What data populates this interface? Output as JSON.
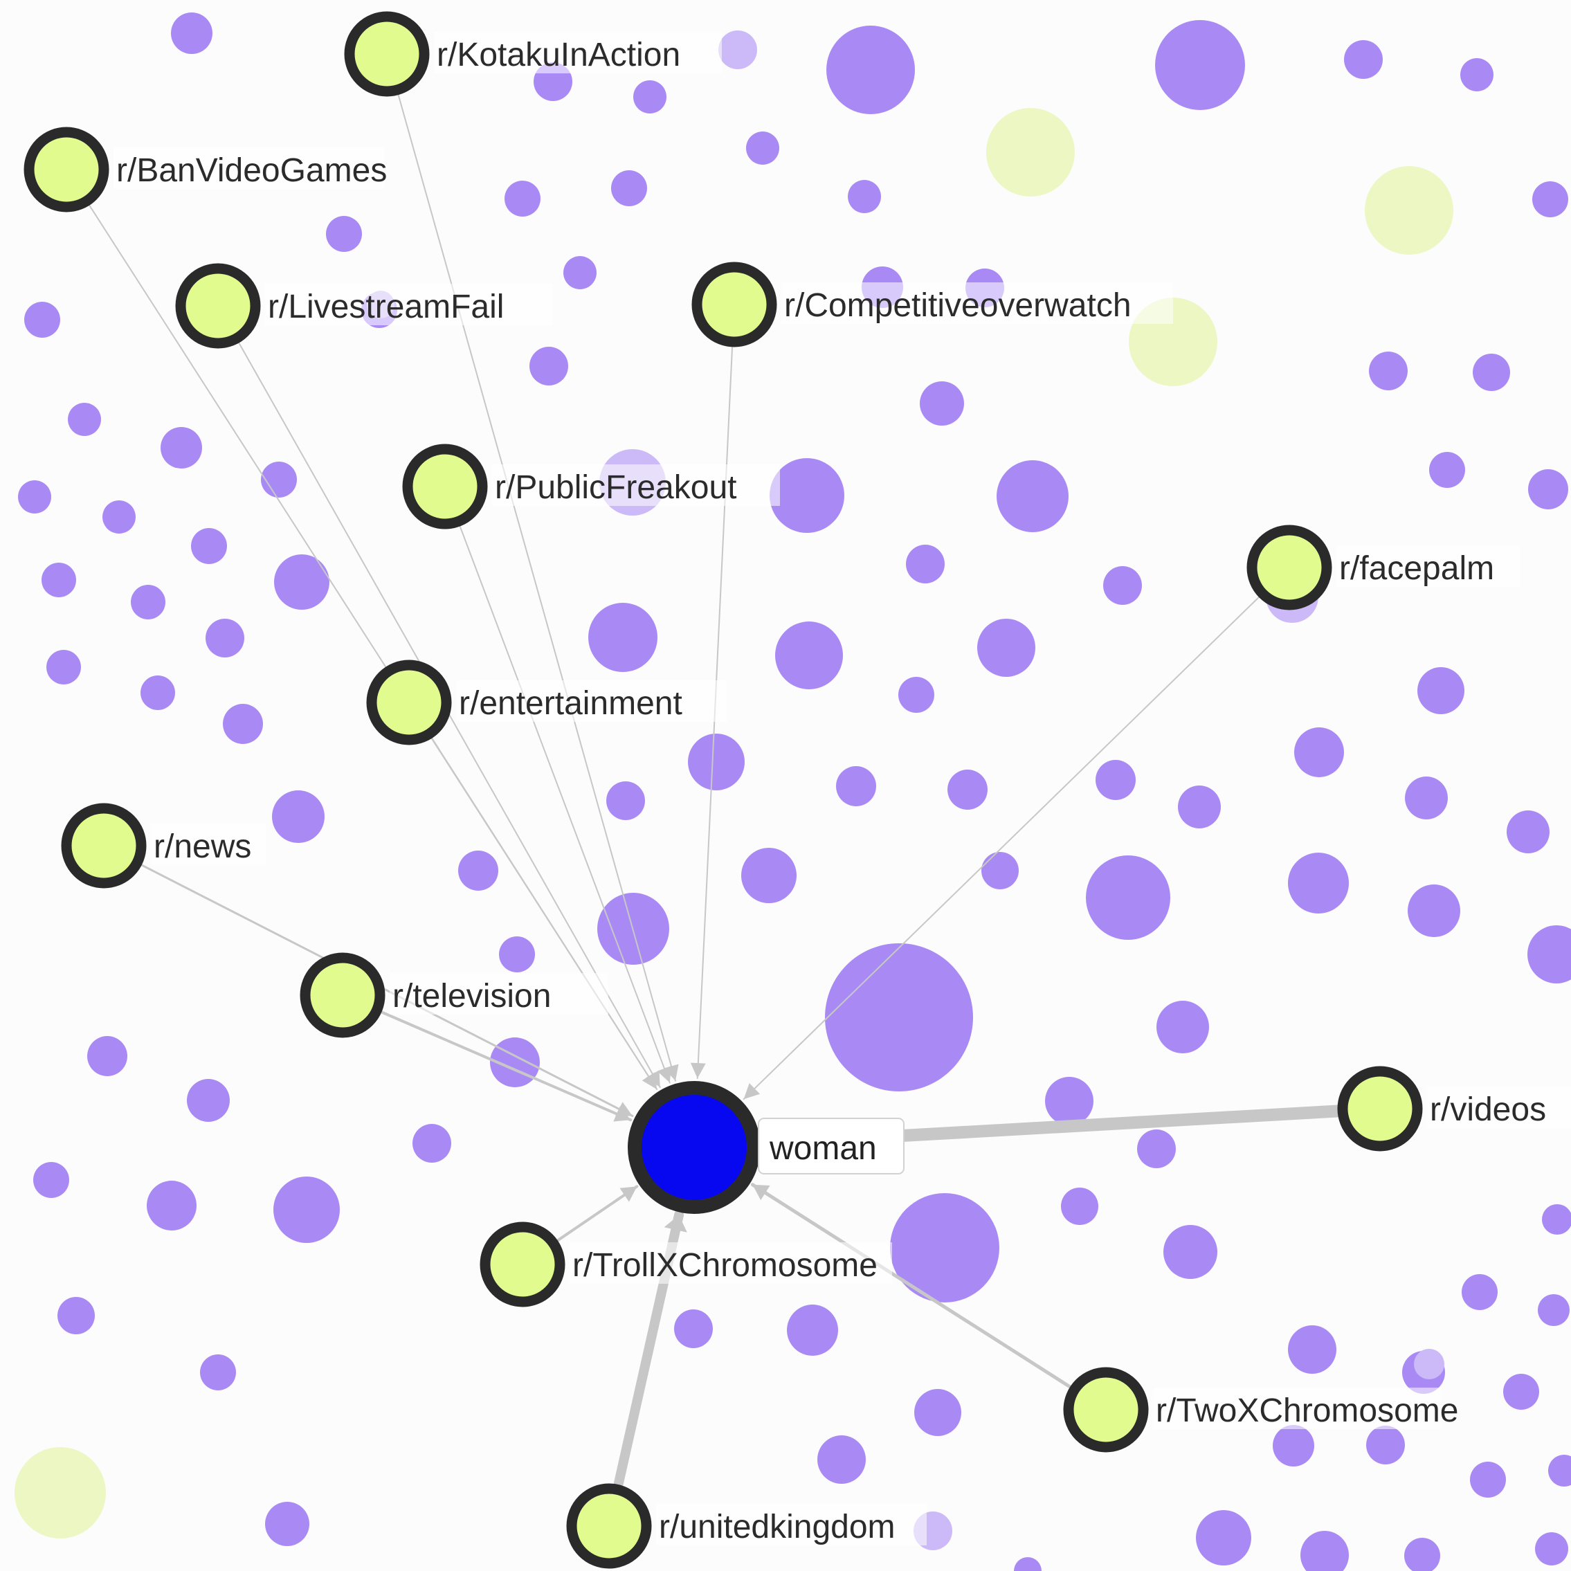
{
  "colors": {
    "background": "#fcfcfc",
    "bg_node": "#a98af5",
    "bg_node_faded": "#ccb9f7",
    "bg_node_green_faded": "#ecf7c4",
    "subreddit_fill": "#e2fb8e",
    "subreddit_stroke": "#2a2a2a",
    "center_fill": "#0808f0",
    "edge": "#c7c7c7",
    "label_bg": "#ffffff"
  },
  "center": {
    "label": "woman"
  },
  "subreddits": [
    {
      "id": "kotakuinaction",
      "label": "r/KotakuInAction"
    },
    {
      "id": "banvideogames",
      "label": "r/BanVideoGames"
    },
    {
      "id": "livestreamfail",
      "label": "r/LivestreamFail"
    },
    {
      "id": "competitiveoverwatch",
      "label": "r/Competitiveoverwatch"
    },
    {
      "id": "publicfreakout",
      "label": "r/PublicFreakout"
    },
    {
      "id": "facepalm",
      "label": "r/facepalm"
    },
    {
      "id": "entertainment",
      "label": "r/entertainment"
    },
    {
      "id": "news",
      "label": "r/news"
    },
    {
      "id": "television",
      "label": "r/television"
    },
    {
      "id": "videos",
      "label": "r/videos"
    },
    {
      "id": "trollxchromosome",
      "label": "r/TrollXChromosome"
    },
    {
      "id": "twoxchromosome",
      "label": "r/TwoXChromosome"
    },
    {
      "id": "unitedkingdom",
      "label": "r/unitedkingdom"
    }
  ]
}
